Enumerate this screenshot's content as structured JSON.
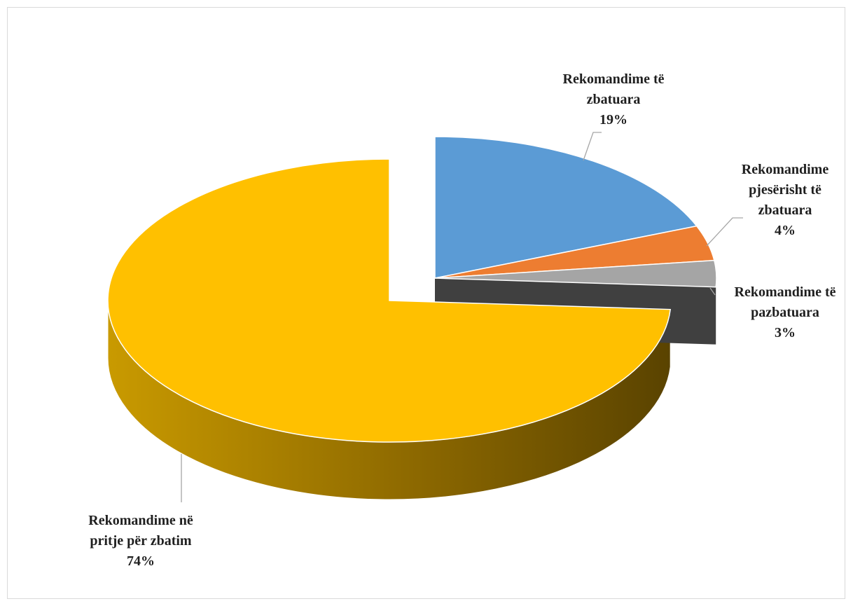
{
  "chart_data": {
    "type": "pie",
    "style": "3d exploded",
    "title": "",
    "slices": [
      {
        "name": "Rekomandime të zbatuara",
        "label_lines": [
          "Rekomandime të",
          "zbatuara"
        ],
        "value": 19,
        "value_label": "19%",
        "color": "#5B9BD5"
      },
      {
        "name": "Rekomandime pjesërisht të zbatuara",
        "label_lines": [
          "Rekomandime",
          "pjesërisht të",
          "zbatuara"
        ],
        "value": 4,
        "value_label": "4%",
        "color": "#ED7D31"
      },
      {
        "name": "Rekomandime të pazbatuara",
        "label_lines": [
          "Rekomandime të",
          "pazbatuara"
        ],
        "value": 3,
        "value_label": "3%",
        "color": "#A5A5A5"
      },
      {
        "name": "Rekomandime në pritje për zbatim",
        "label_lines": [
          "Rekomandime në",
          "pritje për zbatim"
        ],
        "value": 74,
        "value_label": "74%",
        "color": "#FFC000"
      }
    ]
  }
}
